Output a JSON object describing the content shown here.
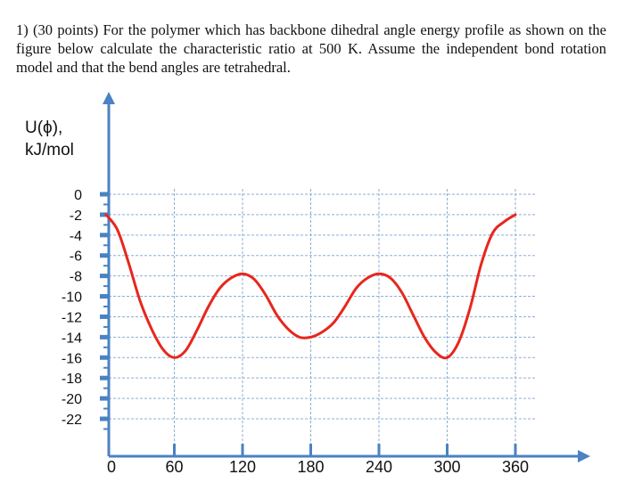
{
  "problem": {
    "text": "1) (30 points) For the polymer which has backbone dihedral angle energy profile as shown on the figure below calculate the characteristic ratio at 500 K. Assume the independent bond rotation model and that the bend angles are tetrahedral."
  },
  "chart_data": {
    "type": "line",
    "ylabel_line1": "U(ϕ),",
    "ylabel_line2": "kJ/mol",
    "xlabel": "",
    "x_ticks": [
      "0",
      "60",
      "120",
      "180",
      "240",
      "300",
      "360"
    ],
    "y_ticks": [
      "0",
      "-2",
      "-4",
      "-6",
      "-8",
      "-10",
      "-12",
      "-14",
      "-16",
      "-18",
      "-20",
      "-22"
    ],
    "xlim": [
      0,
      360
    ],
    "ylim": [
      -22,
      0
    ],
    "grid": true,
    "series": [
      {
        "color": "#e8261c",
        "x": [
          0,
          10,
          20,
          30,
          40,
          50,
          60,
          70,
          80,
          90,
          100,
          110,
          120,
          130,
          140,
          150,
          160,
          170,
          180,
          190,
          200,
          210,
          220,
          230,
          240,
          250,
          260,
          270,
          280,
          290,
          300,
          310,
          320,
          330,
          340,
          350,
          360
        ],
        "y": [
          -2.0,
          -3.5,
          -6.8,
          -10.5,
          -13.2,
          -15.2,
          -16.0,
          -15.3,
          -13.3,
          -11.0,
          -9.2,
          -8.2,
          -7.8,
          -8.3,
          -9.8,
          -11.8,
          -13.2,
          -14.0,
          -14.0,
          -13.5,
          -12.6,
          -11.0,
          -9.2,
          -8.2,
          -7.8,
          -8.2,
          -9.6,
          -11.8,
          -14.0,
          -15.5,
          -16.0,
          -14.5,
          -11.2,
          -6.8,
          -3.8,
          -2.7,
          -2.0
        ]
      }
    ]
  },
  "colors": {
    "axis": "#4a82c3",
    "grid": "#8eaed6",
    "curve": "#e8261c"
  }
}
